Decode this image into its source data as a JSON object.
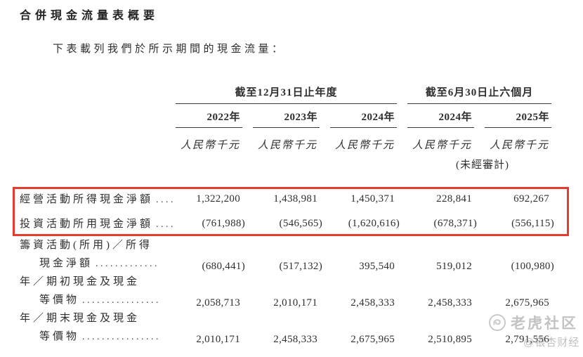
{
  "page": {
    "title": "合併現金流量表概要",
    "intro": "下表載列我們於所示期間的現金流量："
  },
  "table": {
    "groups": [
      {
        "label": "截至12月31日止年度",
        "span": 3
      },
      {
        "label": "截至6月30日止六個月",
        "span": 2
      }
    ],
    "years": [
      "2022年",
      "2023年",
      "2024年",
      "2024年",
      "2025年"
    ],
    "unit": "人民幣千元",
    "unaudited": "(未經審計)",
    "rows": [
      {
        "lines": [
          "經營活動所得現金淨額"
        ],
        "leader": "....",
        "values": [
          "1,322,200",
          "1,438,981",
          "1,450,371",
          "228,841",
          "692,267"
        ],
        "highlighted": true
      },
      {
        "lines": [
          "投資活動所用現金淨額"
        ],
        "leader": "....",
        "values": [
          "(761,988)",
          "(546,565)",
          "(1,620,616)",
          "(678,371)",
          "(556,115)"
        ],
        "highlighted": true
      },
      {
        "lines": [
          "籌資活動(所用)／所得",
          "現金淨額"
        ],
        "leader": ".............",
        "values": [
          "(680,441)",
          "(517,132)",
          "395,540",
          "519,012",
          "(100,980)"
        ],
        "highlighted": false
      },
      {
        "lines": [
          "年／期初現金及現金",
          "等價物"
        ],
        "leader": "................",
        "values": [
          "2,058,713",
          "2,010,171",
          "2,458,333",
          "2,458,333",
          "2,675,965"
        ],
        "highlighted": false
      },
      {
        "lines": [
          "年／期末現金及現金",
          "等價物"
        ],
        "leader": "................",
        "values": [
          "2,010,171",
          "2,458,333",
          "2,675,965",
          "2,510,895",
          "2,791,556"
        ],
        "highlighted": false
      }
    ]
  },
  "watermark": {
    "community": "老虎社区",
    "account": "@银杏财经",
    "icon": "tiger-logo-icon"
  },
  "colors": {
    "highlight_border": "#e63c30",
    "text": "#2e2e2e",
    "rule": "#3a3a3a",
    "watermark": "#9e9e9e"
  }
}
